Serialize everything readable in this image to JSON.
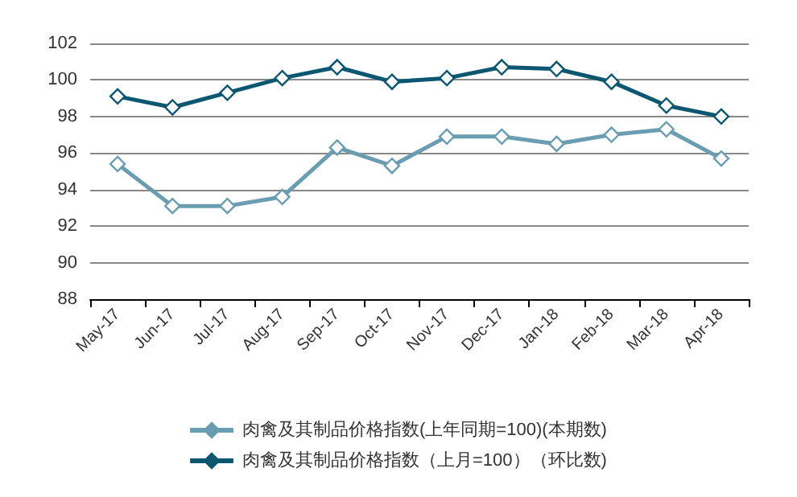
{
  "chart_data": {
    "type": "line",
    "categories": [
      "May-17",
      "Jun-17",
      "Jul-17",
      "Aug-17",
      "Sep-17",
      "Oct-17",
      "Nov-17",
      "Dec-17",
      "Jan-18",
      "Feb-18",
      "Mar-18",
      "Apr-18"
    ],
    "series": [
      {
        "name": "肉禽及其制品价格指数(上年同期=100)(本期数)",
        "color": "#6a9db2",
        "values": [
          95.4,
          93.1,
          93.1,
          93.6,
          96.3,
          95.3,
          96.9,
          96.9,
          96.5,
          97.0,
          97.3,
          95.7
        ]
      },
      {
        "name": "肉禽及其制品价格指数（上月=100）（环比数)",
        "color": "#0b5670",
        "values": [
          99.1,
          98.5,
          99.3,
          100.1,
          100.7,
          99.9,
          100.1,
          100.7,
          100.6,
          99.9,
          98.6,
          98.0
        ]
      }
    ],
    "ylim": [
      88,
      102
    ],
    "yticks": [
      88,
      90,
      92,
      94,
      96,
      98,
      100,
      102
    ],
    "grid": "y",
    "legend": "bottom",
    "marker": "diamond",
    "line_style": "solid"
  }
}
